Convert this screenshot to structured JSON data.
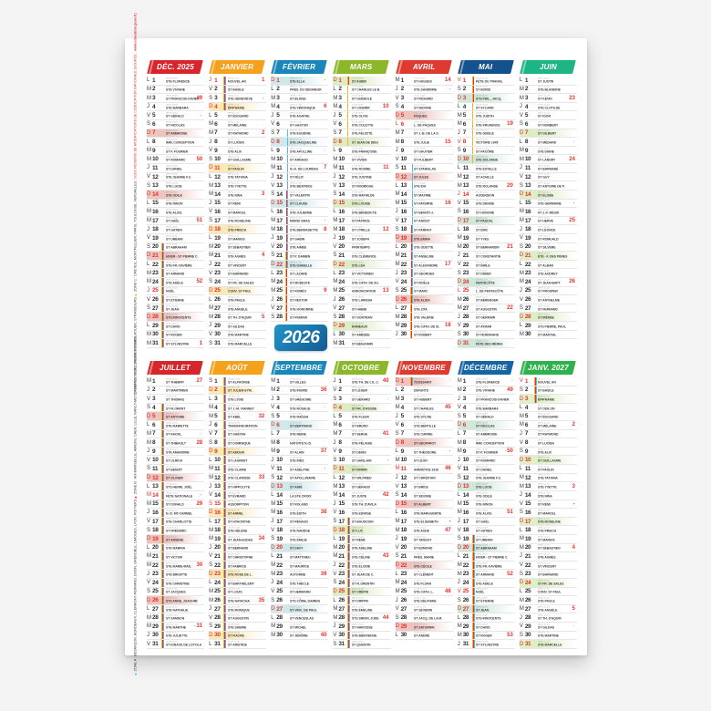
{
  "year_badge": {
    "label": "2026"
  },
  "zone_colors": {
    "A": "#58b7e8",
    "B": "#e8322c",
    "C": "#f6b51e"
  },
  "legend": {
    "strip_top": [
      {
        "text": "ORLÉANS-TOURS, REIMS, RENNES, ROUEN, STRASBOURG ",
        "color": "#3a3a3a"
      },
      {
        "text": "■ ",
        "color": "#f6b51e"
      },
      {
        "text": "ZONE C : CRÉTEIL, MONTPELLIER, PARIS, TOULOUSE, VERSAILLES. ",
        "color": "#3a3a3a"
      },
      {
        "text": "SOUS RÉSERVE DE MODIFICATIONS DE L'ÉDUCATION NATIONALE (SOURCE : ",
        "color": "#e8322c"
      },
      {
        "text": "www.education.gouv.fr",
        "color": "#e8322c",
        "bold": true
      },
      {
        "text": ")",
        "color": "#e8322c"
      }
    ],
    "strip_bottom": [
      {
        "text": "■ ",
        "color": "#58b7e8"
      },
      {
        "text": "ZONE A : BESANÇON, BORDEAUX, CLERMONT-FERRAND, DIJON, GRENOBLE, LIMOGES, LYON, POITIERS ",
        "color": "#3a3a3a"
      },
      {
        "text": "■ ",
        "color": "#e8322c"
      },
      {
        "text": "ZONE B : AIX-MARSEILLE, AMIENS, CAEN, LILLE, NANCY-METZ, NANTES, NICE, ORLÉANS-TOURS, ",
        "color": "#3a3a3a"
      }
    ]
  },
  "weekday_letters": [
    "L",
    "M",
    "M",
    "J",
    "V",
    "S",
    "D"
  ],
  "months": [
    {
      "label": "DÉC. 2025",
      "color": "#d6262b",
      "hl": "#eec4bf",
      "start": 0,
      "micro": "08:42 16:55",
      "red": [
        25
      ],
      "weeks": {
        "3": 49,
        "10": 50,
        "17": 51,
        "24": 52,
        "31": 1
      },
      "moons": {
        "5": "◖"
      },
      "vac": [
        {
          "from": 20,
          "to": 31,
          "z": [
            "C",
            "B",
            "A"
          ]
        }
      ],
      "days": [
        "STE FLORENCE",
        "STE VIVIANE",
        "ST FRANÇOIS-XAVIER",
        "STE BARBARA",
        "ST GÉRALD",
        "ST NICOLAS",
        "ST AMBROISE",
        "IMM. CONCEPTION",
        "ST P. FOURIER",
        "ST ROMARIC",
        "ST DANIEL",
        "STE JEANNE F.C.",
        "STE LUCIE",
        "STE ODILE",
        "STE NINON",
        "STE ALICE",
        "ST GAËL",
        "ST GATIEN",
        "ST URBAIN",
        "ST ABRAHAM",
        "HIVER - ST PIERRE C.",
        "STE FR.-XAVIÈRE",
        "ST ARMAND",
        "STE ADÈLE",
        "NOËL",
        "ST ÉTIENNE",
        "ST JEAN",
        "STS INNOCENTS",
        "ST DAVID",
        "ST ROGER",
        "ST SYLVESTRE"
      ]
    },
    {
      "label": "JANVIER",
      "color": "#f4a21e",
      "hl": "#fbe9b6",
      "start": 3,
      "micro": "08:43 17:11",
      "red": [
        1
      ],
      "weeks": {
        "1": 1,
        "7": 2,
        "14": 3,
        "21": 4,
        "28": 5
      },
      "moons": {
        "3": "◖"
      },
      "vac": [
        {
          "from": 1,
          "to": 4,
          "z": [
            "C",
            "B",
            "A"
          ]
        }
      ],
      "days": [
        "NOUVEL AN",
        "ST BASILE",
        "STE GENEVIÈVE",
        "ÉPIPHANIE",
        "ST ÉDOUARD",
        "ST MÉLAINE",
        "ST RAYMOND",
        "ST LUCIEN",
        "STE ALIX",
        "ST GUILLAUME",
        "ST PAULIN",
        "STE TATIANA",
        "STE YVETTE",
        "STE NINA",
        "ST RÉMI",
        "ST MARCEL",
        "STE ROSELINE",
        "STE PRISCA",
        "ST MARIUS",
        "ST SÉBASTIEN",
        "STE AGNÈS",
        "ST VINCENT",
        "ST BARNARD",
        "ST FR. DE SALES",
        "CONV. ST PAUL",
        "STE PAULE",
        "STE ANGÈLE",
        "ST TH. D'AQUIN",
        "ST GILDAS",
        "STE MARTINE",
        "STE MARCELLE"
      ]
    },
    {
      "label": "FÉVRIER",
      "color": "#1b86b9",
      "hl": "#cfe8ea",
      "start": 6,
      "micro": "08:09 17:58",
      "red": [],
      "weeks": {
        "4": 6,
        "11": 7,
        "18": 8,
        "25": 9
      },
      "moons": {
        "1": "◖",
        "9": "○",
        "17": "◗"
      },
      "vac": [
        {
          "from": 7,
          "to": 22,
          "z": [
            "A"
          ]
        },
        {
          "from": 14,
          "to": 28,
          "z": [
            "B"
          ]
        },
        {
          "from": 21,
          "to": 28,
          "z": [
            "C"
          ]
        }
      ],
      "days": [
        "STE ELLA",
        "PRÉS. DU SEIGNEUR",
        "ST BLAISE",
        "STE VÉRONIQUE",
        "STE AGATHE",
        "ST GASTON",
        "STE EUGÉNIE",
        "STE JACQUELINE",
        "STE APOLLINE",
        "ST ARNAUD",
        "N.-D. DE LOURDES",
        "ST FÉLIX",
        "STE BÉATRICE",
        "ST VALENTIN",
        "ST CLAUDE",
        "STE JULIENNE",
        "MARDI GRAS",
        "STE BERNADETTE",
        "ST GABIN",
        "STE AIMÉE",
        "ST P. DAMIEN",
        "STE ISABELLE",
        "ST LAZARE",
        "ST MODESTE",
        "ST ROMÉO",
        "ST NESTOR",
        "STE HONORINE",
        "ST ROMAIN"
      ]
    },
    {
      "label": "MARS",
      "color": "#8cb72a",
      "hl": "#dcedc4",
      "start": 6,
      "micro": "07:14 18:45",
      "red": [],
      "weeks": {
        "4": 10,
        "11": 11,
        "18": 12,
        "25": 13
      },
      "moons": {},
      "vac": [
        {
          "from": 1,
          "to": 1,
          "z": [
            "B"
          ]
        },
        {
          "from": 1,
          "to": 8,
          "z": [
            "C"
          ]
        }
      ],
      "days": [
        "ST AUBIN",
        "ST CHARLES LE B.",
        "ST GUÉNOLÉ",
        "ST CASIMIR",
        "STE OLIVE",
        "STE COLETTE",
        "STE FÉLICITÉ",
        "ST JEAN DE DIEU",
        "STE FRANÇOISE",
        "ST VIVIEN",
        "STE ROSINE",
        "STE JUSTINE",
        "ST RODRIGUE",
        "STE MATHILDE",
        "STE LOUISE",
        "STE BÉNÉDICTE",
        "ST PATRICE",
        "ST CYRILLE",
        "ST JOSEPH",
        "PRINTEMPS",
        "STE CLÉMENCE",
        "STE LÉA",
        "ST VICTORIEN",
        "STE CATH. DE SU.",
        "ANNONCIATION",
        "STE LARISSA",
        "ST HABIB",
        "ST GONTRAN",
        "RAMEAUX",
        "ST AMÉDÉE",
        "ST BENJAMIN"
      ]
    },
    {
      "label": "AVRIL",
      "color": "#dd3b31",
      "hl": "#eec4bf",
      "start": 2,
      "micro": "07:07 20:32",
      "red": [
        6
      ],
      "weeks": {
        "1": 14,
        "8": 15,
        "15": 16,
        "22": 17,
        "29": 18
      },
      "moons": {
        "2": "◖",
        "10": "○"
      },
      "vac": [
        {
          "from": 11,
          "to": 26,
          "z": [
            "A"
          ]
        },
        {
          "from": 18,
          "to": 30,
          "z": [
            "B"
          ]
        },
        {
          "from": 25,
          "to": 30,
          "z": [
            "C"
          ]
        }
      ],
      "days": [
        "ST HUGUES",
        "STE SANDRINE",
        "ST RICHARD",
        "ST ISIDORE",
        "PÂQUES",
        "L. DE PÂQUES",
        "ST J.-B. DE LA S.",
        "STE JULIE",
        "ST GAUTIER",
        "ST FULBERT",
        "ST STANISLAS",
        "ST JULES",
        "STE IDA",
        "ST MAXIME",
        "ST PATERNE",
        "ST BENOÎT-J.",
        "ST ANICET",
        "ST PARFAIT",
        "STE EMMA",
        "STE ODETTE",
        "ST ANSELME",
        "ST ALEXANDRE",
        "ST GEORGES",
        "ST FIDÈLE",
        "ST MARC",
        "STE ALIDA",
        "STE ZITA",
        "STE VALÉRIE",
        "STE CATH. DE SI.",
        "ST ROBERT"
      ]
    },
    {
      "label": "MAI",
      "color": "#14518d",
      "hl": "#cfe8da",
      "start": 4,
      "micro": "06:14 21:16",
      "red": [
        1,
        8,
        14,
        25
      ],
      "weeks": {
        "6": 19,
        "13": 20,
        "20": 21,
        "27": 22
      },
      "moons": {
        "9": "○"
      },
      "vac": [
        {
          "from": 1,
          "to": 3,
          "z": [
            "B"
          ]
        },
        {
          "from": 1,
          "to": 10,
          "z": [
            "C"
          ]
        }
      ],
      "days": [
        "FÊTE DU TRAVAIL",
        "ST BORIS",
        "STS PHIL., JACQ.",
        "ST SYLVAIN",
        "STE JUDITH",
        "STE PRUDENCE",
        "STE GISÈLE",
        "VICTOIRE 1945",
        "ST PACÔME",
        "STE SOLANGE",
        "STE ESTELLE",
        "ST ACHILLE",
        "STE ROLANDE",
        "ASCENSION",
        "STE DENISE",
        "ST HONORÉ",
        "ST PASCAL",
        "ST ÉRIC",
        "ST YVES",
        "ST BERNARDIN",
        "ST CONSTANTIN",
        "ST ÉMILE",
        "ST DIDIER",
        "PENTECÔTE",
        "L. DE PENTECÔTE",
        "ST BÉRENGER",
        "ST AUGUSTIN",
        "ST GERMAIN",
        "ST AYMAR",
        "ST FERDINAND",
        "FÊTE DES MÈRES"
      ]
    },
    {
      "label": "JUIN",
      "color": "#1eb585",
      "hl": "#ddeec6",
      "start": 0,
      "micro": "05:47 21:53",
      "red": [],
      "weeks": {
        "3": 23,
        "10": 24,
        "17": 25,
        "24": 26
      },
      "moons": {
        "8": "○",
        "15": "◗"
      },
      "vac": [],
      "days": [
        "ST JUSTIN",
        "STE BLANDINE",
        "ST KÉVIN",
        "STE CLOTILDE",
        "ST IGOR",
        "ST NORBERT",
        "ST GILBERT",
        "ST MÉDARD",
        "STE DIANE",
        "ST LANDRY",
        "ST BARNABÉ",
        "ST GUY",
        "ST ANTOINE DE P.",
        "ST ÉLISÉE",
        "STE GERMAINE",
        "ST J.-F. RÉGIS",
        "ST HERVÉ",
        "ST LÉONCE",
        "ST ROMUALD",
        "ST SILVÈRE",
        "ÉTÉ - F. DES PÈRES",
        "ST ALBAN",
        "STE AUDREY",
        "ST JEAN-BAPT.",
        "ST PROSPER",
        "ST ANTHELME",
        "ST FERNAND",
        "ST IRÉNÉE",
        "STS PIERRE, PAUL",
        "ST MARTIAL"
      ]
    },
    {
      "label": "JUILLET",
      "color": "#d6262b",
      "hl": "#eec4bf",
      "start": 2,
      "micro": "05:59 21:51",
      "red": [
        14
      ],
      "weeks": {
        "1": 27,
        "8": 28,
        "15": 29,
        "22": 30,
        "29": 31
      },
      "moons": {
        "7": "○",
        "14": "◗",
        "29": "◖"
      },
      "vac": [
        {
          "from": 4,
          "to": 31,
          "z": [
            "C",
            "B",
            "A"
          ]
        }
      ],
      "days": [
        "ST THIERRY",
        "ST MARTINIEN",
        "ST THOMAS",
        "ST FLORENT",
        "ST ANTOINE",
        "STE MARIETTE",
        "ST RAOUL",
        "ST THIBAULT",
        "STE AMANDINE",
        "ST ULRICH",
        "ST BENOÎT",
        "ST OLIVIER",
        "STS HENRI, JOËL",
        "FÊTE NATIONALE",
        "ST DONALD",
        "N.-D. MT-CARMEL",
        "STE CHARLOTTE",
        "ST FRÉDÉRIC",
        "ST ARSÈNE",
        "STE MARINA",
        "ST VICTOR",
        "STE MARIE-MAD.",
        "STE BRIGITTE",
        "STE CHRISTINE",
        "ST JACQUES",
        "STS ANNE, JOACHIM",
        "STE NATHALIE",
        "ST SAMSON",
        "STE MARTHE",
        "STE JULIETTE",
        "ST IGNACE DE LOYOLA"
      ]
    },
    {
      "label": "AOÛT",
      "color": "#f4a21e",
      "hl": "#fbe9b6",
      "start": 5,
      "micro": "06:39 21:06",
      "red": [
        15
      ],
      "weeks": {
        "5": 32,
        "12": 33,
        "19": 34,
        "26": 35
      },
      "moons": {},
      "vac": [
        {
          "from": 1,
          "to": 31,
          "z": [
            "C",
            "B",
            "A"
          ]
        }
      ],
      "days": [
        "ST ALPHONSE",
        "ST JULIEN-EYM.",
        "STE LYDIE",
        "ST J.-M. VIANNEY",
        "ST ABEL",
        "TRANSFIGURATION",
        "ST GAÉTAN",
        "ST DOMINIQUE",
        "ST AMOUR",
        "ST LAURENT",
        "STE CLAIRE",
        "STE CLARISSE",
        "ST HIPPOLYTE",
        "ST ÉVRARD",
        "ASSOMPTION",
        "ST ARMEL",
        "ST HYACINTHE",
        "STE HÉLÈNE",
        "ST JEAN-EUDES",
        "ST BERNARD",
        "ST CHRISTOPHE",
        "ST FABRICE",
        "STE ROSE DE L.",
        "ST BARTHÉLEMY",
        "ST LOUIS",
        "STE NATACHA",
        "STE MONIQUE",
        "ST AUGUSTIN",
        "STE SABINE",
        "ST FIACRE",
        "ST ARISTIDE"
      ]
    },
    {
      "label": "SEPTEMBRE",
      "color": "#1b86b9",
      "hl": "#cfe8ea",
      "start": 1,
      "micro": "07:24 20:05",
      "red": [],
      "weeks": {
        "2": 36,
        "9": 37,
        "16": 38,
        "23": 39,
        "30": 40
      },
      "moons": {
        "4": "○",
        "11": "◗"
      },
      "vac": [],
      "days": [
        "ST GILLES",
        "STE INGRID",
        "ST GRÉGOIRE",
        "STE ROSALIE",
        "STE RAÏSSA",
        "ST BERTRAND",
        "STE REINE",
        "NATIVITÉ N.-D.",
        "ST ALAIN",
        "STE INÈS",
        "ST ADELPHE",
        "ST APOLLINAIRE",
        "ST AIMÉ",
        "LA STE CROIX",
        "ST ROLAND",
        "STE ÉDITH",
        "ST RENAUD",
        "STE NADÈGE",
        "STE ÉMILIE",
        "ST DAVY",
        "ST MATTHIEU",
        "ST MAURICE",
        "AUTOMNE",
        "STE THÈCLE",
        "ST HERMANN",
        "STS CÔME, DAMIEN",
        "ST VINC. DE PAUL",
        "ST VENCESLAS",
        "ST MICHEL",
        "ST JÉRÔME"
      ]
    },
    {
      "label": "OCTOBRE",
      "color": "#8cb72a",
      "hl": "#dcedc4",
      "start": 3,
      "micro": "08:09 19:03",
      "red": [],
      "weeks": {
        "1": 40,
        "7": 41,
        "14": 42,
        "21": 43,
        "28": 44
      },
      "moons": {
        "3": "○",
        "10": "◗"
      },
      "vac": [
        {
          "from": 17,
          "to": 31,
          "z": [
            "C",
            "B",
            "A"
          ]
        }
      ],
      "days": [
        "STE TH. DE L'E.-J.",
        "ST LÉGER",
        "ST GÉRARD",
        "ST FR. D'ASSISE",
        "STE FLEUR",
        "ST BRUNO",
        "ST SERGE",
        "STE PÉLAGIE",
        "ST DENIS",
        "ST GHISLAIN",
        "ST FIRMIN",
        "ST WILFRIED",
        "ST GÉRAUD",
        "ST JUSTE",
        "STE TH. D'AVILA",
        "STE EDWIGE",
        "ST BAUDOUIN",
        "ST LUC",
        "ST RENÉ",
        "STE ADELINE",
        "STE CÉLINE",
        "STE ÉLODIE",
        "ST JEAN DE C.",
        "ST FLORENTIN",
        "ST CRÉPIN",
        "ST DIMITRI",
        "STE ÉMELINE",
        "STS SIMON, JUDE",
        "ST NARCISSE",
        "STE BIENVENUE",
        "ST QUENTIN"
      ]
    },
    {
      "label": "NOVEMBRE",
      "color": "#dd3b31",
      "hl": "#eec4bf",
      "start": 6,
      "micro": "07:59 17:15",
      "red": [
        11
      ],
      "weeks": {
        "4": 45,
        "11": 46,
        "18": 47,
        "25": 48
      },
      "moons": {
        "1": "○",
        "9": "◗",
        "17": "●"
      },
      "vac": [
        {
          "from": 1,
          "to": 1,
          "z": [
            "C",
            "B",
            "A"
          ]
        }
      ],
      "days": [
        "TOUSSAINT",
        "DÉFUNTS",
        "ST HUBERT",
        "ST CHARLES",
        "STE SYLVIE",
        "STE BERTILLE",
        "STE CARINE",
        "ST GEOFFROY",
        "ST THÉODORE",
        "ST LÉON",
        "ARMISTICE 1918",
        "ST CHRISTIAN",
        "ST BRICE",
        "ST SIDOINE",
        "ST ALBERT",
        "STE MARGUERITE",
        "STE ÉLISABETH",
        "STE AUDE",
        "ST TANGUY",
        "ST EDMOND",
        "PRÉS. MARIE",
        "STE CÉCILE",
        "ST CLÉMENT",
        "STE FLORA",
        "STE CATH. L.",
        "STE DELPHINE",
        "ST SÉVERIN",
        "ST JACQ. DE LA M.",
        "ST SATURNIN",
        "ST ANDRÉ"
      ]
    },
    {
      "label": "DÉCEMBRE",
      "color": "#1565a5",
      "hl": "#cfe8da",
      "start": 1,
      "micro": "08:40 16:54",
      "red": [
        25
      ],
      "weeks": {
        "2": 49,
        "9": 50,
        "16": 51,
        "23": 52,
        "30": 53
      },
      "moons": {
        "1": "○",
        "9": "◗"
      },
      "vac": [
        {
          "from": 19,
          "to": 31,
          "z": [
            "C",
            "B",
            "A"
          ]
        }
      ],
      "days": [
        "STE FLORENCE",
        "STE VIVIANE",
        "ST FRANÇOIS-XAVIER",
        "STE BARBARA",
        "ST GÉRALD",
        "ST NICOLAS",
        "ST AMBROISE",
        "IMM. CONCEPTION",
        "ST P. FOURIER",
        "ST ROMARIC",
        "ST DANIEL",
        "STE JEANNE F.C.",
        "STE LUCIE",
        "STE ODILE",
        "STE NINON",
        "STE ALICE",
        "ST GAËL",
        "ST GATIEN",
        "ST URBAIN",
        "ST ABRAHAM",
        "HIVER - ST PIERRE C.",
        "STE FR.-XAVIÈRE",
        "ST ARMAND",
        "STE ADÈLE",
        "NOËL",
        "ST ÉTIENNE",
        "ST JEAN",
        "STS INNOCENTS",
        "ST DAVID",
        "ST ROGER",
        "ST SYLVESTRE"
      ]
    },
    {
      "label": "JANV. 2027",
      "color": "#2fb24c",
      "hl": "#dff0c6",
      "start": 4,
      "micro": "08:42 17:10",
      "red": [
        1
      ],
      "weeks": {
        "6": 2,
        "13": 3,
        "20": 4,
        "27": 5
      },
      "moons": {
        "15": "●",
        "29": "○"
      },
      "vac": [
        {
          "from": 1,
          "to": 3,
          "z": [
            "C",
            "B",
            "A"
          ]
        }
      ],
      "days": [
        "NOUVEL AN",
        "ST BASILE",
        "ÉPIPHANIE",
        "ST ODILON",
        "ST ÉDOUARD",
        "ST MÉLAINE",
        "ST RAYMOND",
        "ST LUCIEN",
        "STE ALIX",
        "ST GUILLAUME",
        "ST PAULIN",
        "STE TATIANA",
        "STE YVETTE",
        "STE NINA",
        "ST RÉMI",
        "ST MARCEL",
        "STE ROSELINE",
        "STE PRISCA",
        "ST MARIUS",
        "ST SÉBASTIEN",
        "STE AGNÈS",
        "ST VINCENT",
        "ST BARNARD",
        "ST FR. DE SALES",
        "CONV. ST PAUL",
        "STE PAULE",
        "STE ANGÈLE",
        "ST TH. D'AQUIN",
        "ST GILDAS",
        "STE MARTINE",
        "STE MARCELLE"
      ]
    }
  ]
}
